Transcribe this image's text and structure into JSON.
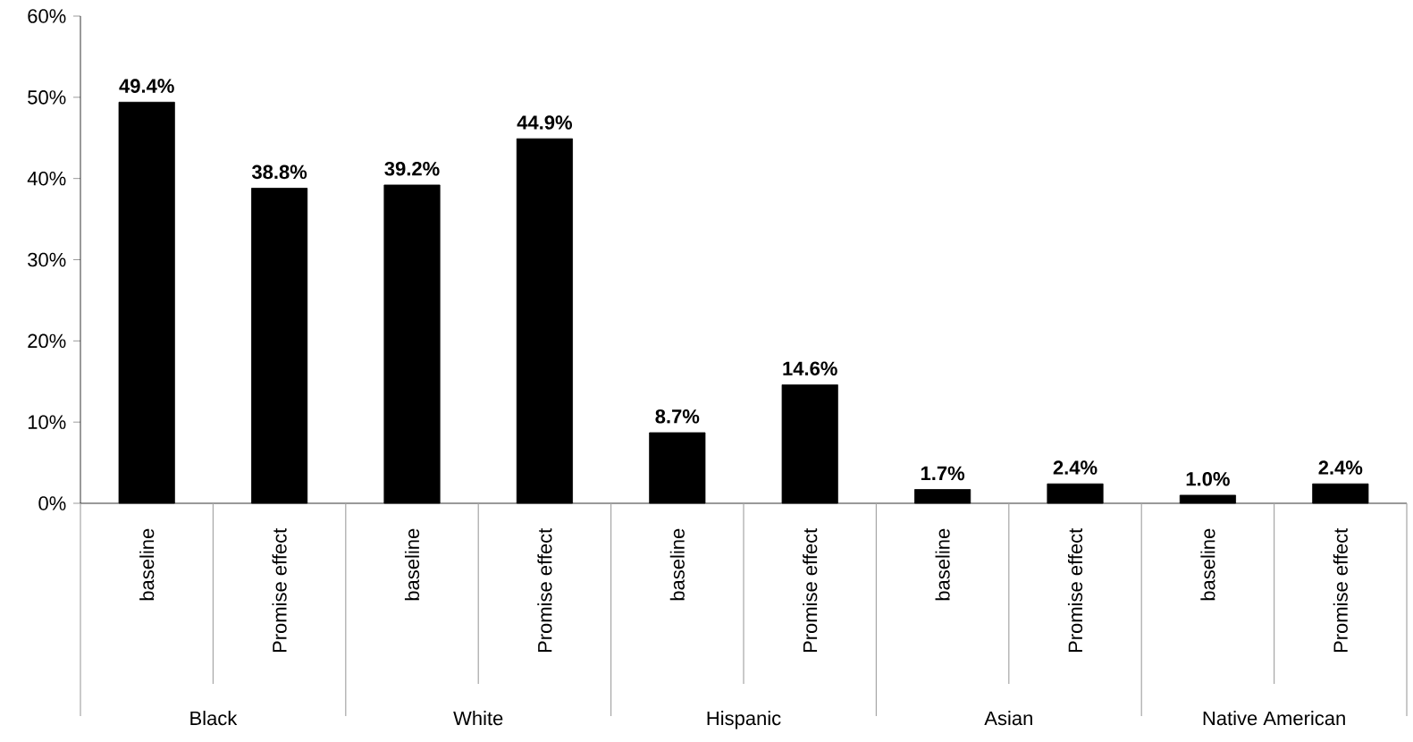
{
  "chart_data": {
    "type": "bar",
    "categories": [
      "baseline",
      "Promise effect",
      "baseline",
      "Promise effect",
      "baseline",
      "Promise effect",
      "baseline",
      "Promise effect",
      "baseline",
      "Promise effect"
    ],
    "values": [
      49.4,
      38.8,
      39.2,
      44.9,
      8.7,
      14.6,
      1.7,
      2.4,
      1.0,
      2.4
    ],
    "value_labels": [
      "49.4%",
      "38.8%",
      "39.2%",
      "44.9%",
      "8.7%",
      "14.6%",
      "1.7%",
      "2.4%",
      "1.0%",
      "2.4%"
    ],
    "color": "#000000",
    "ylim": [
      0,
      60
    ],
    "yticks": [
      {
        "value": 0,
        "label": "0%"
      },
      {
        "value": 10,
        "label": "10%"
      },
      {
        "value": 20,
        "label": "20%"
      },
      {
        "value": 30,
        "label": "30%"
      },
      {
        "value": 40,
        "label": "40%"
      },
      {
        "value": 50,
        "label": "50%"
      },
      {
        "value": 60,
        "label": "60%"
      }
    ],
    "annotations": [
      "Black",
      "White",
      "Hispanic",
      "Asian",
      "Native American"
    ]
  }
}
